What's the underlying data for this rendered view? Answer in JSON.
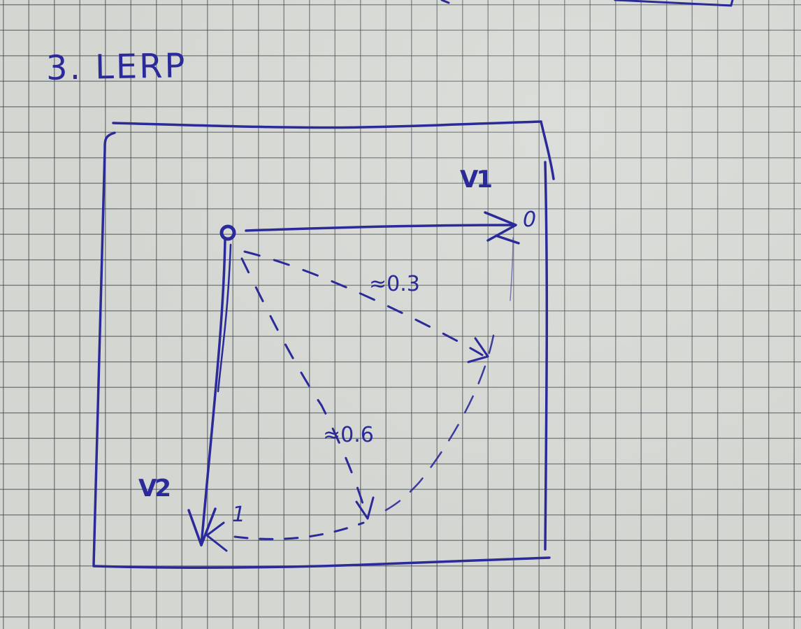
{
  "title": "3. LERP",
  "labels": {
    "v1": "V1",
    "v2": "V2",
    "t0": "0",
    "t03": "≈0.3",
    "t06": "≈0.6",
    "t1": "1"
  },
  "colors": {
    "ink": "#2b2a9a",
    "paper": "#d3d6d1",
    "grid": "#3a3f44"
  }
}
